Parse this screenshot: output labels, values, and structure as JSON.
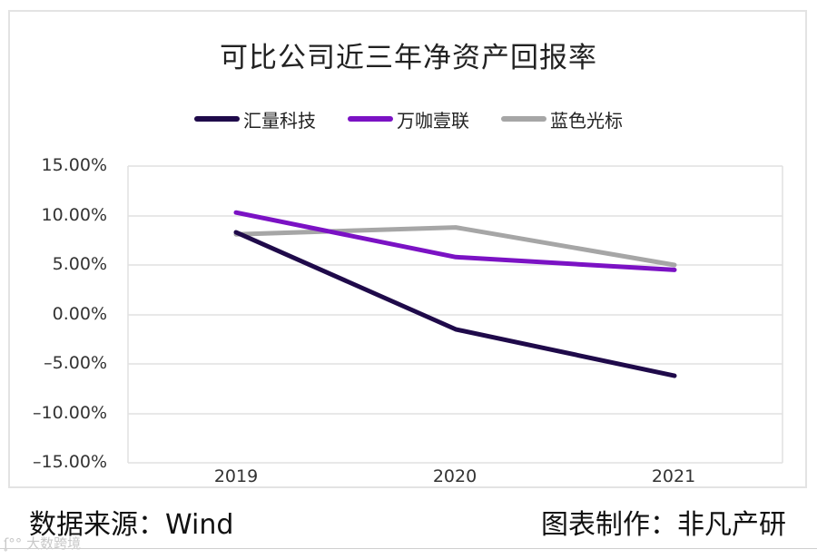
{
  "chart_data": {
    "type": "line",
    "title": "可比公司近三年净资产回报率",
    "categories": [
      "2019",
      "2020",
      "2021"
    ],
    "series": [
      {
        "name": "汇量科技",
        "color": "#1f0a4a",
        "values": [
          8.3,
          -1.5,
          -6.2
        ]
      },
      {
        "name": "万咖壹联",
        "color": "#7b12c4",
        "values": [
          10.3,
          5.8,
          4.5
        ]
      },
      {
        "name": "蓝色光标",
        "color": "#a6a6a6",
        "values": [
          8.1,
          8.8,
          5.0
        ]
      }
    ],
    "xlabel": "",
    "ylabel": "",
    "ylim": [
      -15,
      15
    ],
    "yticks": [
      "15.00%",
      "10.00%",
      "5.00%",
      "0.00%",
      "–5.00%",
      "–10.00%",
      "–15.00%"
    ],
    "grid": true,
    "legend_position": "top"
  },
  "title": "可比公司近三年净资产回报率",
  "legend": [
    {
      "label": "汇量科技",
      "color": "#1f0a4a"
    },
    {
      "label": "万咖壹联",
      "color": "#7b12c4"
    },
    {
      "label": "蓝色光标",
      "color": "#a6a6a6"
    }
  ],
  "footer": {
    "source": "数据来源：Wind",
    "credit": "图表制作：非凡产研"
  },
  "watermark": "大数跨境"
}
